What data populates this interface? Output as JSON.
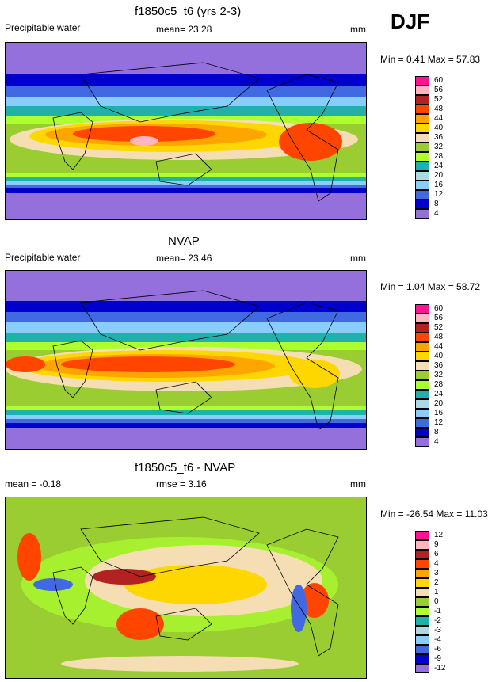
{
  "season": "DJF",
  "chart_data": [
    {
      "type": "heatmap",
      "title": "f1850c5_t6 (yrs 2-3)",
      "variable": "Precipitable water",
      "mean_text": "mean=  23.28",
      "units": "mm",
      "minmax_text": "Min =  0.41 Max =  57.83",
      "min": 0.41,
      "max": 57.83,
      "mean": 23.28,
      "levels": [
        "60",
        "56",
        "52",
        "48",
        "44",
        "40",
        "36",
        "32",
        "28",
        "24",
        "20",
        "16",
        "12",
        "8",
        "4"
      ],
      "colors": [
        "#ff1493",
        "#ffb6c1",
        "#b22222",
        "#ff4500",
        "#ffa500",
        "#ffd700",
        "#f5deb3",
        "#9acd32",
        "#adff2f",
        "#20b2aa",
        "#add8e6",
        "#87cefa",
        "#4169e1",
        "#0000cd",
        "#9370db"
      ]
    },
    {
      "type": "heatmap",
      "title": "NVAP",
      "variable": "Precipitable water",
      "mean_text": "mean=  23.46",
      "units": "mm",
      "minmax_text": "Min =  1.04 Max =  58.72",
      "min": 1.04,
      "max": 58.72,
      "mean": 23.46,
      "levels": [
        "60",
        "56",
        "52",
        "48",
        "44",
        "40",
        "36",
        "32",
        "28",
        "24",
        "20",
        "16",
        "12",
        "8",
        "4"
      ],
      "colors": [
        "#ff1493",
        "#ffb6c1",
        "#b22222",
        "#ff4500",
        "#ffa500",
        "#ffd700",
        "#f5deb3",
        "#9acd32",
        "#adff2f",
        "#20b2aa",
        "#add8e6",
        "#87cefa",
        "#4169e1",
        "#0000cd",
        "#9370db"
      ]
    },
    {
      "type": "heatmap",
      "title": "f1850c5_t6 - NVAP",
      "mean_text": "mean =  -0.18",
      "rmse_text": "rmse =   3.16",
      "units": "mm",
      "minmax_text": "Min = -26.54 Max =  11.03",
      "min": -26.54,
      "max": 11.03,
      "mean": -0.18,
      "rmse": 3.16,
      "levels": [
        "12",
        "9",
        "6",
        "4",
        "3",
        "2",
        "1",
        "0",
        "-1",
        "-2",
        "-3",
        "-4",
        "-6",
        "-9",
        "-12"
      ],
      "colors": [
        "#ff1493",
        "#ffb6c1",
        "#b22222",
        "#ff4500",
        "#ffa500",
        "#ffd700",
        "#f5deb3",
        "#9acd32",
        "#adff2f",
        "#20b2aa",
        "#add8e6",
        "#87cefa",
        "#4169e1",
        "#0000cd",
        "#9370db"
      ]
    }
  ]
}
